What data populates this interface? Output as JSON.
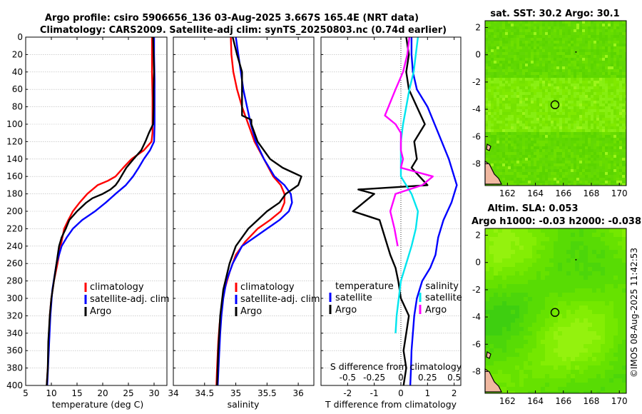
{
  "figure": {
    "title_line1": "Argo profile: csiro 5906656_136 03-Aug-2025 3.667S 165.4E (NRT data)",
    "title_line2": "Climatology: CARS2009. Satellite-adj clim: synTS_20250803.nc (0.74d earlier)",
    "credit": "©IMOS 08-Aug-2025 11:42:53"
  },
  "colors": {
    "climatology": "#ff0000",
    "satellite_adj": "#0000ff",
    "argo": "#000000",
    "salinity_satellite": "#00e5ee",
    "salinity_argo": "#ff00ff"
  },
  "chart_data": [
    {
      "type": "line",
      "name": "temperature-profile",
      "xlabel": "temperature (deg C)",
      "ylabel": "",
      "xlim": [
        5,
        32.5
      ],
      "ylim": [
        400,
        0
      ],
      "xticks": [
        5,
        10,
        15,
        20,
        25,
        30
      ],
      "yticks": [
        0,
        20,
        40,
        60,
        80,
        100,
        120,
        140,
        160,
        180,
        200,
        220,
        240,
        260,
        280,
        300,
        320,
        340,
        360,
        380,
        400
      ],
      "legend": [
        "climatology",
        "satellite-adj. clim",
        "Argo"
      ],
      "legend_position": "lower-right",
      "series": [
        {
          "name": "climatology",
          "color": "#ff0000",
          "x": [
            29.6,
            29.6,
            29.6,
            29.7,
            29.7,
            29.7,
            29.5,
            28.0,
            25.6,
            24.0,
            22.5,
            21.0,
            19.0,
            17.0,
            15.5,
            14.2,
            13.3,
            12.5,
            11.8,
            11.2,
            10.5,
            10.0,
            9.7,
            9.5,
            9.3,
            9.1
          ],
          "y": [
            0,
            10,
            40,
            70,
            90,
            110,
            120,
            130,
            140,
            150,
            160,
            165,
            170,
            180,
            190,
            200,
            210,
            220,
            240,
            260,
            280,
            300,
            320,
            350,
            380,
            400
          ]
        },
        {
          "name": "satellite-adj. clim",
          "color": "#0000ff",
          "x": [
            30.0,
            30.0,
            30.1,
            30.1,
            30.1,
            30.0,
            29.2,
            28.0,
            27.0,
            25.9,
            24.5,
            22.5,
            20.6,
            18.5,
            16.0,
            14.2,
            13.0,
            12.0,
            11.0,
            10.2,
            9.8,
            9.5,
            9.2
          ],
          "y": [
            0,
            20,
            50,
            80,
            100,
            120,
            130,
            140,
            150,
            160,
            170,
            180,
            190,
            200,
            210,
            220,
            230,
            240,
            260,
            290,
            320,
            360,
            400
          ]
        },
        {
          "name": "Argo",
          "color": "#000000",
          "x": [
            29.8,
            29.9,
            30.0,
            29.9,
            29.9,
            29.8,
            29.0,
            28.3,
            27.5,
            26.0,
            24.6,
            23.6,
            23.1,
            22.5,
            21.5,
            20.0,
            18.0,
            16.8,
            15.0,
            13.5,
            12.8,
            12.0,
            11.5,
            11.0,
            10.5,
            10.0,
            9.7,
            9.4,
            9.3,
            9.1
          ],
          "y": [
            0,
            20,
            40,
            60,
            80,
            100,
            110,
            120,
            130,
            140,
            150,
            160,
            165,
            170,
            175,
            180,
            185,
            190,
            200,
            210,
            220,
            230,
            240,
            260,
            280,
            300,
            320,
            350,
            380,
            400
          ]
        }
      ]
    },
    {
      "type": "line",
      "name": "salinity-profile",
      "xlabel": "salinity",
      "ylabel": "",
      "xlim": [
        34,
        36.25
      ],
      "ylim": [
        400,
        0
      ],
      "xticks": [
        34,
        34.5,
        35,
        35.5,
        36
      ],
      "legend": [
        "climatology",
        "satellite-adj. clim",
        "Argo"
      ],
      "legend_position": "lower-right",
      "series": [
        {
          "name": "climatology",
          "color": "#ff0000",
          "x": [
            34.92,
            34.93,
            34.96,
            35.02,
            35.1,
            35.2,
            35.3,
            35.45,
            35.6,
            35.72,
            35.78,
            35.78,
            35.72,
            35.55,
            35.35,
            35.15,
            35.0,
            34.9,
            34.82,
            34.77,
            34.74,
            34.72,
            34.7,
            34.69
          ],
          "y": [
            0,
            20,
            40,
            60,
            80,
            100,
            120,
            140,
            160,
            170,
            180,
            190,
            200,
            210,
            220,
            235,
            250,
            270,
            290,
            310,
            330,
            350,
            380,
            400
          ]
        },
        {
          "name": "satellite-adj. clim",
          "color": "#0000ff",
          "x": [
            35.0,
            35.04,
            35.08,
            35.12,
            35.18,
            35.24,
            35.32,
            35.45,
            35.62,
            35.78,
            35.88,
            35.9,
            35.85,
            35.7,
            35.5,
            35.3,
            35.1,
            34.95,
            34.85,
            34.8,
            34.77,
            34.75,
            34.73,
            34.71
          ],
          "y": [
            0,
            20,
            40,
            60,
            80,
            100,
            120,
            140,
            160,
            170,
            180,
            190,
            200,
            210,
            220,
            230,
            240,
            260,
            280,
            300,
            320,
            340,
            370,
            400
          ]
        },
        {
          "name": "Argo",
          "color": "#000000",
          "x": [
            34.95,
            35.02,
            35.1,
            35.1,
            35.1,
            35.25,
            35.25,
            35.35,
            35.55,
            35.75,
            35.9,
            36.05,
            36.0,
            35.8,
            35.7,
            35.5,
            35.35,
            35.2,
            35.0,
            34.9,
            34.8,
            34.75,
            34.72,
            34.7
          ],
          "y": [
            0,
            20,
            40,
            60,
            90,
            95,
            100,
            120,
            140,
            150,
            155,
            160,
            170,
            180,
            190,
            200,
            210,
            220,
            240,
            260,
            290,
            320,
            360,
            400
          ]
        }
      ]
    },
    {
      "type": "line",
      "name": "difference-profile",
      "xlabel": "T difference from climatology",
      "top_axis_label": "S difference from climatology",
      "xlim": [
        -3,
        2.25
      ],
      "ylim": [
        400,
        0
      ],
      "xticks": [
        -2,
        -1,
        0,
        1,
        2
      ],
      "top_xticks": [
        -0.5,
        -0.25,
        0,
        0.25,
        0.5
      ],
      "legend_left_title": "temperature",
      "legend_left": [
        "satellite",
        "Argo"
      ],
      "legend_right_title": "salinity",
      "legend_right": [
        "satellite",
        "Argo"
      ],
      "series": [
        {
          "name": "temperature satellite",
          "color": "#0000ff",
          "x": [
            0.4,
            0.4,
            0.45,
            0.6,
            1.0,
            1.4,
            1.8,
            2.1,
            1.9,
            1.6,
            1.4,
            1.3,
            1.1,
            0.8,
            0.6,
            0.5,
            0.45,
            0.4,
            0.38,
            0.35
          ],
          "y": [
            0,
            20,
            40,
            60,
            80,
            110,
            140,
            170,
            190,
            210,
            230,
            250,
            265,
            280,
            300,
            320,
            340,
            360,
            380,
            400
          ]
        },
        {
          "name": "temperature Argo",
          "color": "#000000",
          "x": [
            0.2,
            0.3,
            0.2,
            0.3,
            0.6,
            0.9,
            0.7,
            0.5,
            0.6,
            0.4,
            0.7,
            1.0,
            -1.6,
            -1.0,
            -1.8,
            -0.8,
            -0.6,
            -0.4,
            -0.2,
            -0.1,
            0.0,
            0.3,
            0.2,
            0.1,
            0.2,
            0.1
          ],
          "y": [
            0,
            20,
            40,
            60,
            80,
            100,
            110,
            120,
            140,
            150,
            160,
            170,
            175,
            180,
            200,
            210,
            230,
            250,
            265,
            280,
            300,
            320,
            340,
            360,
            380,
            400
          ]
        },
        {
          "name": "salinity satellite",
          "color": "#00e5ee",
          "x": [
            0.16,
            0.14,
            0.12,
            0.08,
            0.05,
            0.02,
            0.0,
            0.0,
            0.0,
            0.1,
            0.16,
            0.14,
            0.1,
            0.05,
            0.0,
            -0.02,
            -0.04,
            -0.05
          ],
          "y": [
            0,
            20,
            40,
            60,
            80,
            100,
            120,
            140,
            160,
            180,
            200,
            220,
            240,
            260,
            280,
            300,
            320,
            340
          ]
        },
        {
          "name": "salinity Argo",
          "color": "#ff00ff",
          "x": [
            0.08,
            0.06,
            0.02,
            -0.05,
            -0.15,
            -0.05,
            0.0,
            0.0,
            0.0,
            0.02,
            0.0,
            0.3,
            0.2,
            -0.05,
            -0.1,
            -0.06,
            -0.03
          ],
          "y": [
            0,
            20,
            40,
            60,
            90,
            100,
            110,
            120,
            130,
            140,
            150,
            160,
            170,
            180,
            200,
            220,
            240
          ]
        }
      ]
    },
    {
      "type": "heatmap",
      "name": "sst-map",
      "title": "sat. SST: 30.2 Argo: 30.1",
      "xticks": [
        162,
        164,
        166,
        168,
        170
      ],
      "yticks": [
        2,
        0,
        -2,
        -4,
        -6,
        -8
      ],
      "xlim": [
        160.4,
        170.5
      ],
      "ylim": [
        -9.6,
        2.5
      ],
      "marker": {
        "lon": 165.4,
        "lat": -3.667
      }
    },
    {
      "type": "heatmap",
      "name": "sla-map",
      "title": "Altim. SLA: 0.053",
      "subtitle": "Argo h1000: -0.03 h2000: -0.038",
      "xticks": [
        162,
        164,
        166,
        168,
        170
      ],
      "yticks": [
        2,
        0,
        -2,
        -4,
        -6,
        -8
      ],
      "xlim": [
        160.4,
        170.5
      ],
      "ylim": [
        -9.6,
        2.5
      ],
      "marker": {
        "lon": 165.4,
        "lat": -3.667
      }
    }
  ]
}
